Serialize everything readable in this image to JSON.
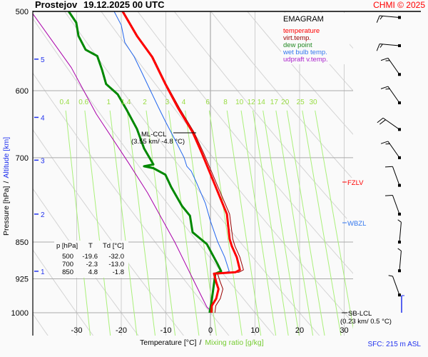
{
  "header": {
    "station": "Prostejov",
    "datetime": "19.12.2025 00 UTC",
    "copyright": "CHMI © 2025"
  },
  "legend": {
    "title": "EMAGRAM",
    "items": [
      {
        "label": "temperature",
        "color": "#ff0000"
      },
      {
        "label": "virt.temp.",
        "color": "#990000"
      },
      {
        "label": "dew point",
        "color": "#008800"
      },
      {
        "label": "wet bulb temp.",
        "color": "#2266ee"
      },
      {
        "label": "udpraft v.temp.",
        "color": "#aa00aa"
      }
    ]
  },
  "table": {
    "headers": [
      "p [hPa]",
      "T",
      "Td [°C]"
    ],
    "rows": [
      [
        "500",
        "-19.6",
        "-32.0"
      ],
      [
        "700",
        "-2.3",
        "-13.0"
      ],
      [
        "850",
        "4.8",
        "-1.8"
      ]
    ]
  },
  "annotations": {
    "ml_ccl": "ML-CCL",
    "ml_ccl_value": "(3.55 km/ -4.8 °C)",
    "sb_lcl": "SB-LCL",
    "sb_lcl_value": "(0.23 km/ 0.5 °C)",
    "fzlv": "FZLV",
    "wbzl": "WBZL",
    "surface": "SFC: 215 m ASL"
  },
  "chart_data": {
    "type": "line",
    "title": "Prostejov    19.12.2025 00 UTC",
    "xlabel": "Temperature [°C]",
    "xlabel_secondary": "Mixing ratio [g/kg]",
    "ylabel": "Pressure [hPa]",
    "ylabel_secondary": "Altitude [km]",
    "xlim": [
      -40,
      32
    ],
    "ylim": [
      1054,
      500
    ],
    "y_scale": "log",
    "x_ticks": [
      -30,
      -20,
      -10,
      0,
      10,
      20,
      30
    ],
    "y_ticks": [
      500,
      600,
      700,
      850,
      925,
      1000
    ],
    "altitude_ticks": [
      {
        "km": "5",
        "p": 558
      },
      {
        "km": "4",
        "p": 638
      },
      {
        "km": "3",
        "p": 704
      },
      {
        "km": "2",
        "p": 797
      },
      {
        "km": "1",
        "p": 909
      }
    ],
    "mixing_ratio_lines": [
      "0.4",
      "0.6",
      "1",
      "1.4",
      "2",
      "3",
      "4",
      "6",
      "8",
      "10",
      "12",
      "14",
      "17",
      "20",
      "25",
      "30"
    ],
    "grid": true,
    "legend_position": "top-right",
    "series": [
      {
        "name": "temperature",
        "color": "#ff0000",
        "points": [
          [
            -19.7,
            500
          ],
          [
            -16.5,
            529
          ],
          [
            -13.1,
            555
          ],
          [
            -10.1,
            591
          ],
          [
            -7.2,
            625
          ],
          [
            -4.0,
            660
          ],
          [
            -1.9,
            693
          ],
          [
            1.1,
            747
          ],
          [
            3.7,
            797
          ],
          [
            4.3,
            844
          ],
          [
            4.8,
            858
          ],
          [
            5.9,
            880
          ],
          [
            6.6,
            906
          ],
          [
            5.6,
            911
          ],
          [
            0.8,
            914
          ],
          [
            1.3,
            932
          ],
          [
            1.8,
            947
          ],
          [
            1.3,
            968
          ],
          [
            0.3,
            984
          ],
          [
            0.2,
            1000
          ]
        ]
      },
      {
        "name": "virt.temp.",
        "color": "#990000",
        "points": [
          [
            -19.5,
            500
          ],
          [
            -16.3,
            529
          ],
          [
            -12.9,
            555
          ],
          [
            -9.9,
            591
          ],
          [
            -6.9,
            625
          ],
          [
            -3.7,
            660
          ],
          [
            -1.5,
            693
          ],
          [
            1.6,
            747
          ],
          [
            4.3,
            797
          ],
          [
            5.0,
            844
          ],
          [
            5.5,
            858
          ],
          [
            6.6,
            880
          ],
          [
            7.4,
            906
          ],
          [
            6.4,
            911
          ],
          [
            1.6,
            914
          ],
          [
            2.2,
            932
          ],
          [
            2.8,
            947
          ],
          [
            2.2,
            968
          ],
          [
            1.2,
            984
          ],
          [
            1.0,
            1000
          ]
        ]
      },
      {
        "name": "dew point",
        "color": "#008800",
        "points": [
          [
            -31.8,
            500
          ],
          [
            -30.1,
            513
          ],
          [
            -29.6,
            529
          ],
          [
            -28.0,
            546
          ],
          [
            -25.4,
            554
          ],
          [
            -24.3,
            572
          ],
          [
            -23.4,
            591
          ],
          [
            -20.8,
            605
          ],
          [
            -18.7,
            628
          ],
          [
            -16.5,
            655
          ],
          [
            -14.9,
            685
          ],
          [
            -12.8,
            711
          ],
          [
            -14.9,
            714
          ],
          [
            -12.8,
            717
          ],
          [
            -10.1,
            728
          ],
          [
            -8.8,
            749
          ],
          [
            -6.4,
            782
          ],
          [
            -4.6,
            800
          ],
          [
            -4.0,
            831
          ],
          [
            -0.8,
            854
          ],
          [
            1.6,
            894
          ],
          [
            2.4,
            909
          ],
          [
            1.1,
            914
          ],
          [
            0.3,
            971
          ],
          [
            -0.2,
            1000
          ]
        ]
      },
      {
        "name": "wet bulb temp.",
        "color": "#2266ee",
        "points": [
          [
            -21.6,
            500
          ],
          [
            -20.0,
            516
          ],
          [
            -19.2,
            537
          ],
          [
            -17.1,
            555
          ],
          [
            -15.5,
            574
          ],
          [
            -13.6,
            598
          ],
          [
            -11.7,
            623
          ],
          [
            -10.1,
            644
          ],
          [
            -8.0,
            671
          ],
          [
            -5.9,
            700
          ],
          [
            -5.3,
            714
          ],
          [
            -4.3,
            722
          ],
          [
            -3.2,
            740
          ],
          [
            -1.1,
            778
          ],
          [
            0.0,
            810
          ],
          [
            1.6,
            849
          ],
          [
            3.2,
            880
          ],
          [
            4.2,
            909
          ],
          [
            2.4,
            914
          ]
        ]
      },
      {
        "name": "udpraft v.temp.",
        "color": "#aa00aa",
        "points": [
          [
            -39.8,
            503
          ],
          [
            -31.2,
            569
          ],
          [
            -25.6,
            633
          ],
          [
            -18.4,
            708
          ],
          [
            -14.1,
            759
          ],
          [
            -8.0,
            850
          ],
          [
            -4.0,
            924
          ],
          [
            -1.6,
            971
          ],
          [
            -0.8,
            987
          ],
          [
            0.5,
            1000
          ]
        ]
      }
    ],
    "wind_barbs": [
      {
        "p": 507,
        "dir": 265,
        "kt": 15
      },
      {
        "p": 541,
        "dir": 265,
        "kt": 15
      },
      {
        "p": 578,
        "dir": 215,
        "kt": 15
      },
      {
        "p": 617,
        "dir": 215,
        "kt": 15
      },
      {
        "p": 656,
        "dir": 235,
        "kt": 20
      },
      {
        "p": 700,
        "dir": 215,
        "kt": 15
      },
      {
        "p": 746,
        "dir": 200,
        "kt": 10
      },
      {
        "p": 797,
        "dir": 200,
        "kt": 10
      },
      {
        "p": 850,
        "dir": 175,
        "kt": 5
      },
      {
        "p": 908,
        "dir": 175,
        "kt": 5
      },
      {
        "p": 960,
        "dir": 200,
        "kt": 5
      }
    ]
  }
}
